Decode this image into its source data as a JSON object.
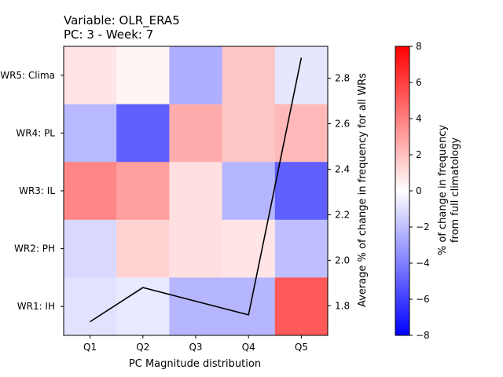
{
  "chart_data": {
    "type": "heatmap",
    "title": "Variable: OLR_ERA5",
    "subtitle": "PC: 3 - Week: 7",
    "xlabel": "PC Magnitude distribution",
    "ylabel": "",
    "y2label": "Average % of change in frequency for all WRs",
    "categories": [
      "Q1",
      "Q2",
      "Q3",
      "Q4",
      "Q5"
    ],
    "rows": [
      "WR5: Clima",
      "WR4: PL",
      "WR3: IL",
      "WR2: PH",
      "WR1: IH"
    ],
    "values": [
      [
        0.8,
        0.3,
        -2.5,
        1.8,
        -0.8
      ],
      [
        -2.2,
        -5.0,
        2.6,
        1.8,
        2.2
      ],
      [
        3.8,
        3.0,
        1.0,
        -2.3,
        -5.0
      ],
      [
        -1.2,
        1.4,
        1.0,
        0.8,
        -2.0
      ],
      [
        -0.9,
        -0.7,
        -2.3,
        -2.3,
        5.2
      ]
    ],
    "colormap": "bwr",
    "vmin": -8,
    "vmax": 8,
    "colorbar_label_line1": "% of change in frequency",
    "colorbar_label_line2": "from full climatology",
    "colorbar_ticks": [
      -8,
      -6,
      -4,
      -2,
      0,
      2,
      4,
      6,
      8
    ],
    "line_series": {
      "x": [
        "Q1",
        "Q2",
        "Q3",
        "Q4",
        "Q5"
      ],
      "values": [
        1.73,
        1.88,
        1.82,
        1.76,
        2.89
      ],
      "color": "#000000"
    },
    "y2lim": [
      1.67,
      2.94
    ],
    "y2_ticks": [
      1.8,
      2.0,
      2.2,
      2.4,
      2.6,
      2.8
    ]
  }
}
